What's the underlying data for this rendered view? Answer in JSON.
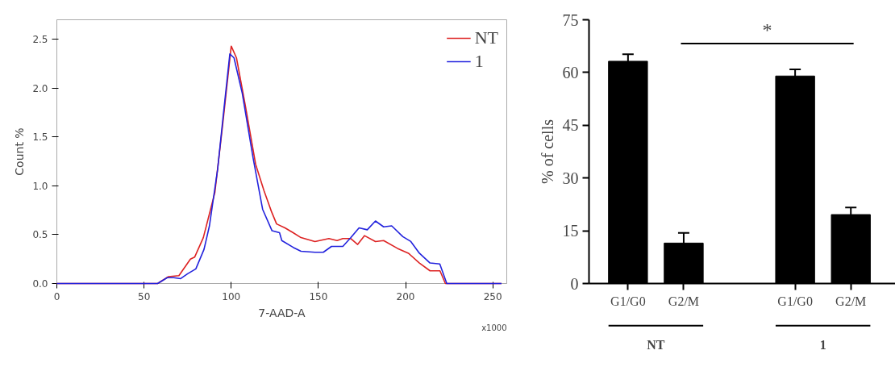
{
  "chart_data": [
    {
      "type": "line",
      "xlabel": "7-AAD-A",
      "ylabel": "Count %",
      "xlim": [
        0,
        258
      ],
      "ylim": [
        0,
        2.7
      ],
      "xticks": [
        0,
        50,
        100,
        150,
        200,
        250
      ],
      "yticks": [
        {
          "value": 0,
          "label": "0.0"
        },
        0.5,
        {
          "value": 1,
          "label": "1.0"
        },
        1.5,
        {
          "value": 2,
          "label": "2.0"
        },
        2.5
      ],
      "grid": false,
      "legend": "top right",
      "annotations": [
        "x1000"
      ],
      "series": [
        {
          "name": "NT",
          "color": "#dd2222",
          "x": [
            0,
            57.8,
            64,
            70,
            76.6,
            79,
            84,
            90.6,
            95,
            100,
            103,
            108,
            114,
            118.8,
            123,
            126,
            130.8,
            135.5,
            140,
            148,
            156,
            160.7,
            164,
            168.6,
            172.5,
            176.4,
            182.7,
            187.4,
            195.3,
            201.6,
            207.9,
            214,
            219.7,
            222.8,
            255
          ],
          "values": [
            0,
            0,
            0.07,
            0.08,
            0.25,
            0.27,
            0.47,
            0.93,
            1.61,
            2.43,
            2.31,
            1.83,
            1.22,
            0.95,
            0.74,
            0.61,
            0.57,
            0.52,
            0.47,
            0.43,
            0.46,
            0.44,
            0.46,
            0.46,
            0.4,
            0.49,
            0.43,
            0.44,
            0.36,
            0.31,
            0.21,
            0.13,
            0.13,
            0,
            0
          ]
        },
        {
          "name": "1",
          "color": "#2222dd",
          "x": [
            0,
            57.8,
            63.3,
            67,
            71,
            75,
            79.7,
            84.4,
            87.5,
            92.2,
            95.3,
            99.2,
            101.6,
            106.3,
            112.5,
            118,
            123.4,
            127.7,
            129,
            135.5,
            140,
            148,
            152.8,
            157.5,
            164,
            168.6,
            173.3,
            178,
            182.7,
            187.4,
            192,
            198.4,
            203,
            207.9,
            214,
            219.6,
            223.6,
            255
          ],
          "values": [
            0,
            0,
            0.06,
            0.06,
            0.05,
            0.1,
            0.15,
            0.35,
            0.59,
            1.17,
            1.7,
            2.35,
            2.31,
            1.95,
            1.29,
            0.76,
            0.54,
            0.52,
            0.44,
            0.37,
            0.33,
            0.32,
            0.32,
            0.38,
            0.38,
            0.47,
            0.57,
            0.55,
            0.64,
            0.58,
            0.59,
            0.48,
            0.43,
            0.31,
            0.21,
            0.2,
            0,
            0
          ]
        }
      ]
    },
    {
      "type": "bar",
      "ylabel": "% of cells",
      "categories": [
        "G1/G0",
        "G2/M",
        null,
        "G1/G0",
        "G2/M"
      ],
      "values": [
        63.2,
        11.5,
        null,
        59.0,
        19.6
      ],
      "errors": [
        2.0,
        2.9,
        null,
        1.9,
        2.0
      ],
      "color": "#000000",
      "ylim": [
        0,
        75
      ],
      "yticks": [
        0,
        15,
        30,
        45,
        60,
        75
      ],
      "grid": false,
      "annotations": [
        "*",
        "NT",
        "1"
      ]
    }
  ]
}
